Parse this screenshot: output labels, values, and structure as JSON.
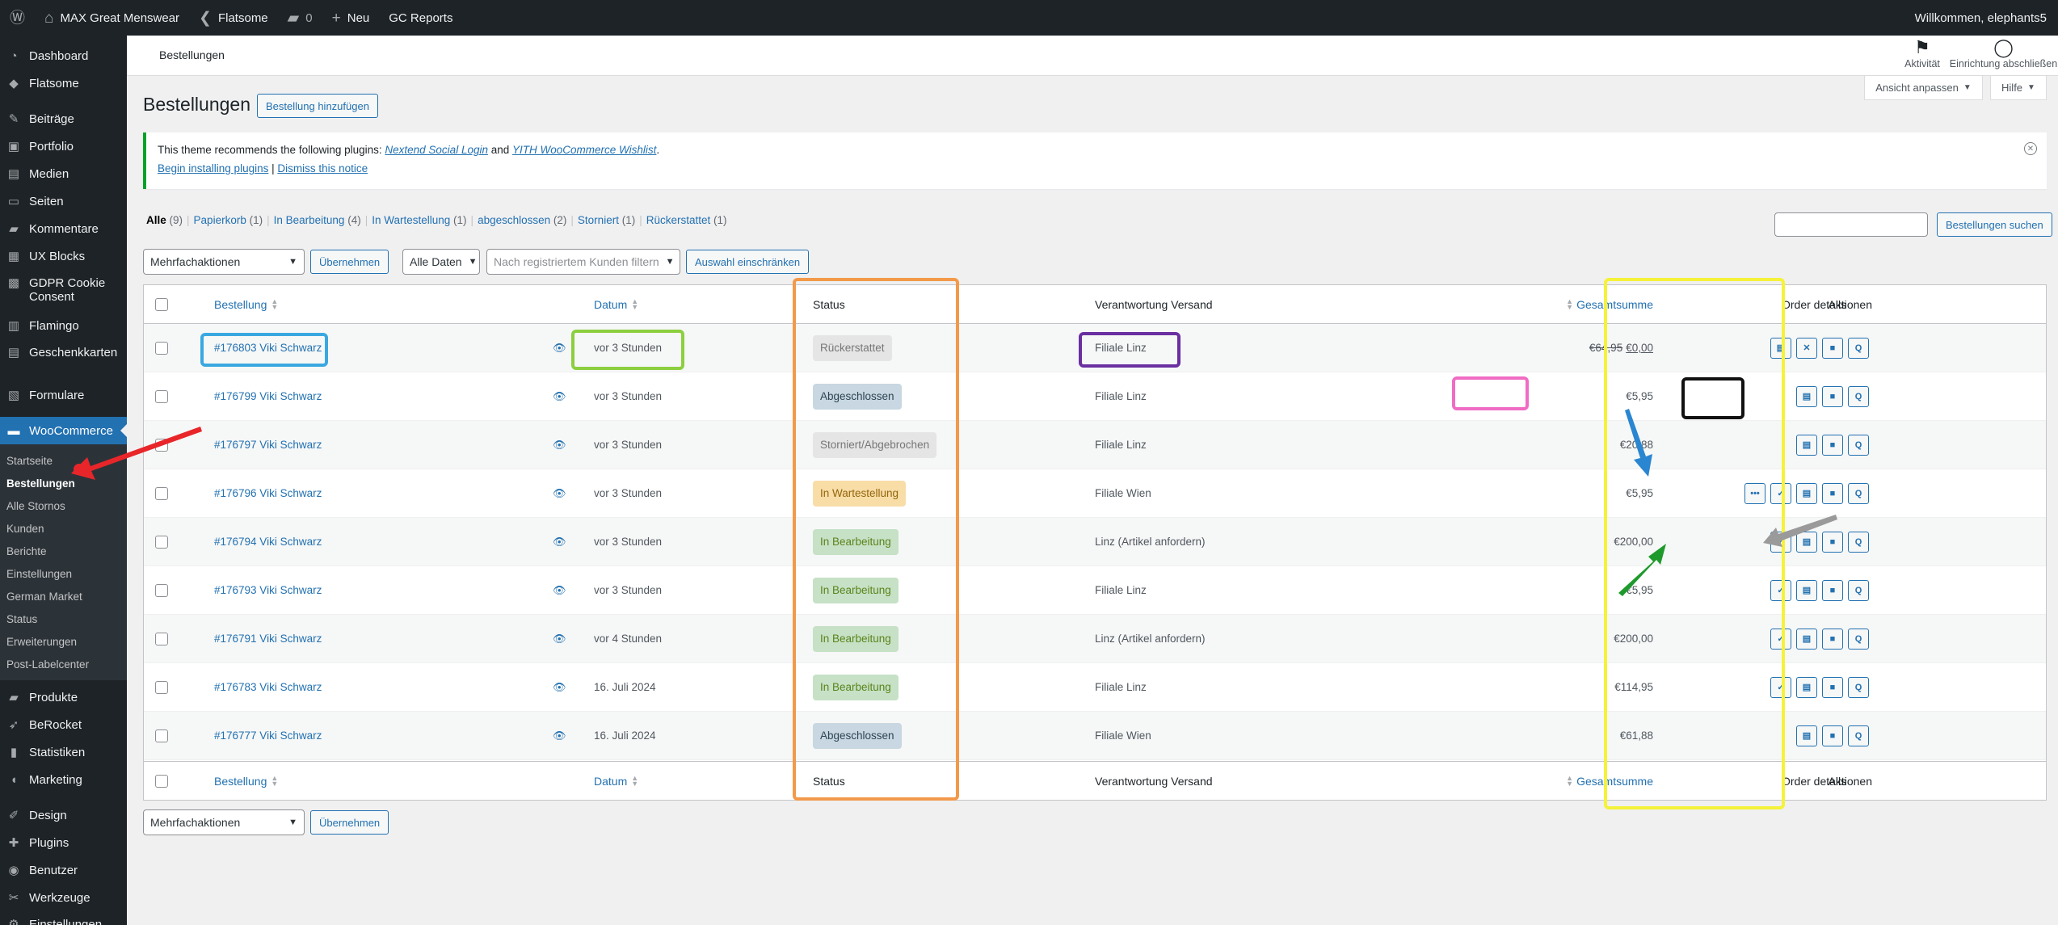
{
  "adminbar": {
    "site": "MAX Great Menswear",
    "theme": "Flatsome",
    "comments": "0",
    "new": "Neu",
    "reports": "GC Reports",
    "welcome": "Willkommen, elephants5"
  },
  "sidebar": {
    "top": [
      {
        "label": "Dashboard",
        "icon": "◔"
      },
      {
        "label": "Flatsome",
        "icon": "◆"
      }
    ],
    "group1": [
      {
        "label": "Beiträge",
        "icon": "✎"
      },
      {
        "label": "Portfolio",
        "icon": "▣"
      },
      {
        "label": "Medien",
        "icon": "▤"
      },
      {
        "label": "Seiten",
        "icon": "▭"
      },
      {
        "label": "Kommentare",
        "icon": "▰"
      },
      {
        "label": "UX Blocks",
        "icon": "▦"
      },
      {
        "label": "GDPR Cookie Consent",
        "icon": "▩"
      },
      {
        "label": "Flamingo",
        "icon": "▥"
      },
      {
        "label": "Geschenkkarten",
        "icon": "▤"
      },
      {
        "label": "Formulare",
        "icon": "▧"
      }
    ],
    "woocommerce": {
      "label": "WooCommerce",
      "icon": "▬"
    },
    "submenu": [
      "Startseite",
      "Bestellungen",
      "Alle Stornos",
      "Kunden",
      "Berichte",
      "Einstellungen",
      "German Market",
      "Status",
      "Erweiterungen",
      "Post-Labelcenter"
    ],
    "group2": [
      {
        "label": "Produkte",
        "icon": "▰"
      },
      {
        "label": "BeRocket",
        "icon": "➶"
      },
      {
        "label": "Statistiken",
        "icon": "▮"
      },
      {
        "label": "Marketing",
        "icon": "◖"
      }
    ],
    "group3": [
      {
        "label": "Design",
        "icon": "✐"
      },
      {
        "label": "Plugins",
        "icon": "✚"
      },
      {
        "label": "Benutzer",
        "icon": "◉"
      },
      {
        "label": "Werkzeuge",
        "icon": "✂"
      },
      {
        "label": "Einstellungen",
        "icon": "⚙"
      }
    ]
  },
  "header": {
    "title": "Bestellungen",
    "activity": "Aktivität",
    "finish_setup": "Einrichtung abschließen",
    "screen_options": "Ansicht anpassen",
    "help": "Hilfe"
  },
  "page": {
    "title": "Bestellungen",
    "add_order": "Bestellung hinzufügen"
  },
  "notice": {
    "text_before": "This theme recommends the following plugins: ",
    "plugin1": "Nextend Social Login",
    "and": " and ",
    "plugin2": "YITH WooCommerce Wishlist",
    "text_after": ".",
    "install": "Begin installing plugins",
    "sep": " | ",
    "dismiss": "Dismiss this notice"
  },
  "filters": [
    {
      "label": "Alle",
      "count": "(9)"
    },
    {
      "label": "Papierkorb",
      "count": "(1)"
    },
    {
      "label": "In Bearbeitung",
      "count": "(4)"
    },
    {
      "label": "In Wartestellung",
      "count": "(1)"
    },
    {
      "label": "abgeschlossen",
      "count": "(2)"
    },
    {
      "label": "Storniert",
      "count": "(1)"
    },
    {
      "label": "Rückerstattet",
      "count": "(1)"
    }
  ],
  "toolbar": {
    "bulk": "Mehrfachaktionen",
    "apply": "Übernehmen",
    "dates": "Alle Daten",
    "customer_placeholder": "Nach registriertem Kunden filtern",
    "filter": "Auswahl einschränken",
    "search": "Bestellungen suchen"
  },
  "table": {
    "headers": {
      "order": "Bestellung",
      "date": "Datum",
      "status": "Status",
      "shipping": "Verantwortung Versand",
      "total": "Gesamtsumme",
      "actions": "Aktionen",
      "details": "Order details"
    },
    "rows": [
      {
        "order": "#176803 Viki Schwarz",
        "date": "vor 3 Stunden",
        "status": "Rückerstattet",
        "shipping": "Filiale Linz",
        "total_old": "€64,95",
        "total": "€0,00",
        "actions": [
          "doc",
          "x",
          "truck",
          "q"
        ]
      },
      {
        "order": "#176799 Viki Schwarz",
        "date": "vor 3 Stunden",
        "status": "Abgeschlossen",
        "shipping": "Filiale Linz",
        "total_old": "",
        "total": "€5,95",
        "actions": [
          "doc",
          "truck",
          "q"
        ]
      },
      {
        "order": "#176797 Viki Schwarz",
        "date": "vor 3 Stunden",
        "status": "Storniert/Abgebrochen",
        "shipping": "Filiale Linz",
        "total_old": "",
        "total": "€20,88",
        "actions": [
          "doc",
          "truck",
          "q"
        ]
      },
      {
        "order": "#176796 Viki Schwarz",
        "date": "vor 3 Stunden",
        "status": "In Wartestellung",
        "shipping": "Filiale Wien",
        "total_old": "",
        "total": "€5,95",
        "actions": [
          "dots",
          "check",
          "doc",
          "truck",
          "q"
        ]
      },
      {
        "order": "#176794 Viki Schwarz",
        "date": "vor 3 Stunden",
        "status": "In Bearbeitung",
        "shipping": "Linz (Artikel anfordern)",
        "total_old": "",
        "total": "€200,00",
        "actions": [
          "check",
          "doc",
          "truck",
          "q"
        ]
      },
      {
        "order": "#176793 Viki Schwarz",
        "date": "vor 3 Stunden",
        "status": "In Bearbeitung",
        "shipping": "Filiale Linz",
        "total_old": "",
        "total": "€5,95",
        "actions": [
          "check",
          "doc",
          "truck",
          "q"
        ]
      },
      {
        "order": "#176791 Viki Schwarz",
        "date": "vor 4 Stunden",
        "status": "In Bearbeitung",
        "shipping": "Linz (Artikel anfordern)",
        "total_old": "",
        "total": "€200,00",
        "actions": [
          "check",
          "doc",
          "truck",
          "q"
        ]
      },
      {
        "order": "#176783 Viki Schwarz",
        "date": "16. Juli 2024",
        "status": "In Bearbeitung",
        "shipping": "Filiale Linz",
        "total_old": "",
        "total": "€114,95",
        "actions": [
          "check",
          "doc",
          "truck",
          "q"
        ]
      },
      {
        "order": "#176777 Viki Schwarz",
        "date": "16. Juli 2024",
        "status": "Abgeschlossen",
        "shipping": "Filiale Wien",
        "total_old": "",
        "total": "€61,88",
        "actions": [
          "doc",
          "truck",
          "q"
        ]
      }
    ]
  },
  "status_colors": {
    "Rückerstattet": {
      "bg": "#e5e5e5",
      "fg": "#777777"
    },
    "Abgeschlossen": {
      "bg": "#c8d7e1",
      "fg": "#2e4453"
    },
    "Storniert/Abgebrochen": {
      "bg": "#e5e5e5",
      "fg": "#777777"
    },
    "In Wartestellung": {
      "bg": "#f8dda7",
      "fg": "#94660c"
    },
    "In Bearbeitung": {
      "bg": "#c6e1c6",
      "fg": "#5b841b"
    }
  },
  "action_glyphs": {
    "doc": "▤",
    "x": "✕",
    "truck": "■",
    "q": "Q",
    "check": "✓",
    "dots": "•••"
  },
  "annotation_colors": {
    "orange": "#f2994a",
    "yellow": "#f5f23a",
    "cyan": "#3aa8e0",
    "green": "#8ccf3f",
    "purple": "#6a2fa0",
    "pink": "#f06cc4",
    "black": "#111111",
    "red": "#e8262a",
    "blue": "#2a86d1",
    "darkgreen": "#1e9a2c",
    "gray": "#9a9a9a"
  }
}
